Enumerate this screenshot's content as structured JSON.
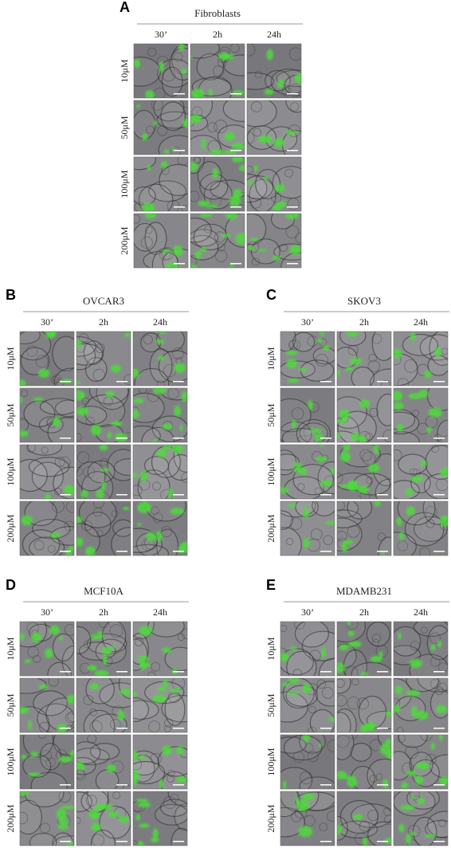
{
  "panels": [
    {
      "letter": "A",
      "title": "Fibroblasts",
      "columns": [
        "30’",
        "2h",
        "24h"
      ],
      "rows": [
        "10μM",
        "50μM",
        "100μM",
        "200μM"
      ]
    },
    {
      "letter": "B",
      "title": "OVCAR3",
      "columns": [
        "30’",
        "2h",
        "24h"
      ],
      "rows": [
        "10μM",
        "50μM",
        "100μM",
        "200μM"
      ]
    },
    {
      "letter": "C",
      "title": "SKOV3",
      "columns": [
        "30’",
        "2h",
        "24h"
      ],
      "rows": [
        "10μM",
        "50μM",
        "100μM",
        "200μM"
      ]
    },
    {
      "letter": "D",
      "title": "MCF10A",
      "columns": [
        "30’",
        "2h",
        "24h"
      ],
      "rows": [
        "10μM",
        "50μM",
        "100μM",
        "200μM"
      ]
    },
    {
      "letter": "E",
      "title": "MDAMB231",
      "columns": [
        "30’",
        "2h",
        "24h"
      ],
      "rows": [
        "10μM",
        "50μM",
        "100μM",
        "200μM"
      ]
    }
  ]
}
